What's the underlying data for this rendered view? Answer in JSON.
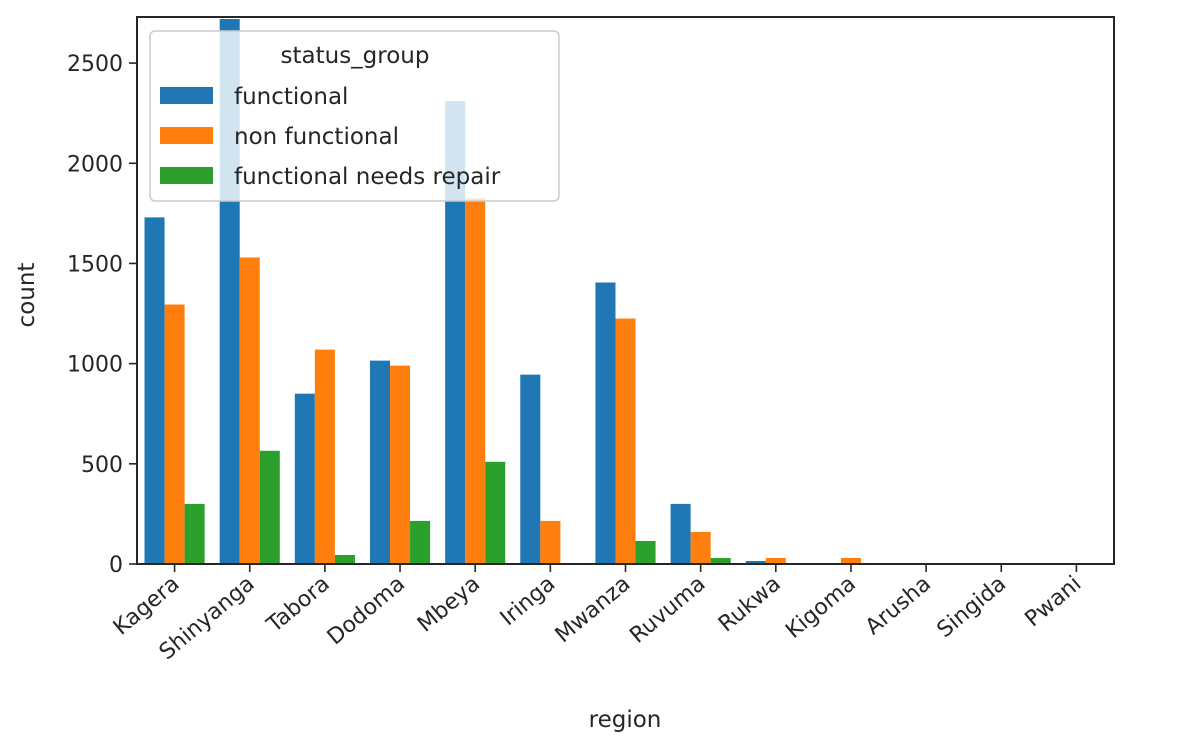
{
  "chart_data": {
    "type": "bar",
    "xlabel": "region",
    "ylabel": "count",
    "ylim": [
      0,
      2730
    ],
    "yticks": [
      "0",
      "500",
      "1000",
      "1500",
      "2000",
      "2500"
    ],
    "categories": [
      "Kagera",
      "Shinyanga",
      "Tabora",
      "Dodoma",
      "Mbeya",
      "Iringa",
      "Mwanza",
      "Ruvuma",
      "Rukwa",
      "Kigoma",
      "Arusha",
      "Singida",
      "Pwani"
    ],
    "series": [
      {
        "name": "functional",
        "color": "#1f77b4",
        "values": [
          1730,
          2720,
          850,
          1015,
          2310,
          945,
          1405,
          300,
          15,
          0,
          0,
          0,
          0
        ]
      },
      {
        "name": "non functional",
        "color": "#ff7f0e",
        "values": [
          1295,
          1530,
          1070,
          990,
          1825,
          215,
          1225,
          160,
          30,
          30,
          0,
          0,
          0
        ]
      },
      {
        "name": "functional needs repair",
        "color": "#2ca02c",
        "values": [
          300,
          565,
          45,
          215,
          510,
          0,
          115,
          30,
          0,
          0,
          0,
          0,
          0
        ]
      }
    ],
    "legend": {
      "title": "status_group",
      "placement": "top-left"
    },
    "grid": false
  }
}
